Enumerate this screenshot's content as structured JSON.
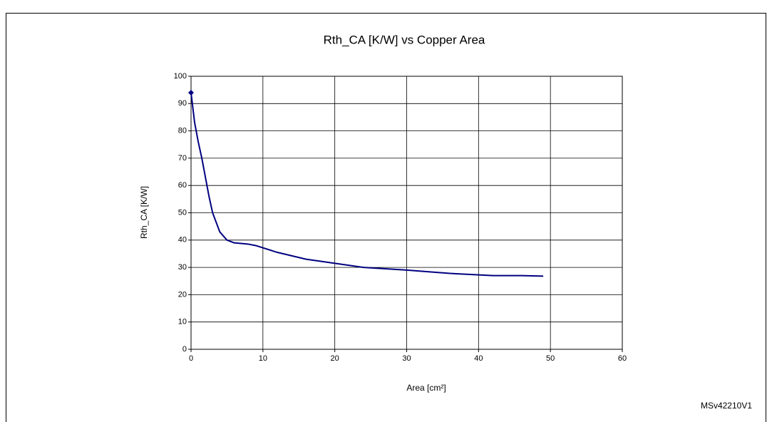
{
  "chart_data": {
    "type": "line",
    "title": "Rth_CA [K/W] vs Copper Area",
    "xlabel": "Area [cm²]",
    "ylabel": "Rth_CA [K/W]",
    "annotation": "MSv42210V1",
    "x": [
      0,
      0.5,
      1,
      1.5,
      2,
      2.5,
      3,
      4,
      5,
      6,
      8,
      9,
      12,
      16,
      20,
      24,
      30,
      36,
      42,
      46,
      49
    ],
    "series": [
      {
        "name": "Rth_CA",
        "color": "#000080",
        "values": [
          94,
          83,
          76,
          70,
          63,
          56,
          50,
          43,
          40,
          39,
          38.5,
          38,
          35.5,
          33,
          31.5,
          30,
          29,
          27.8,
          27,
          27,
          26.8
        ]
      }
    ],
    "marker": "start",
    "xlim": [
      0,
      60
    ],
    "xticks": [
      0,
      10,
      20,
      30,
      40,
      50,
      60
    ],
    "ylim": [
      0,
      100
    ],
    "yticks": [
      0,
      10,
      20,
      30,
      40,
      50,
      60,
      70,
      80,
      90,
      100
    ],
    "grid": true
  }
}
